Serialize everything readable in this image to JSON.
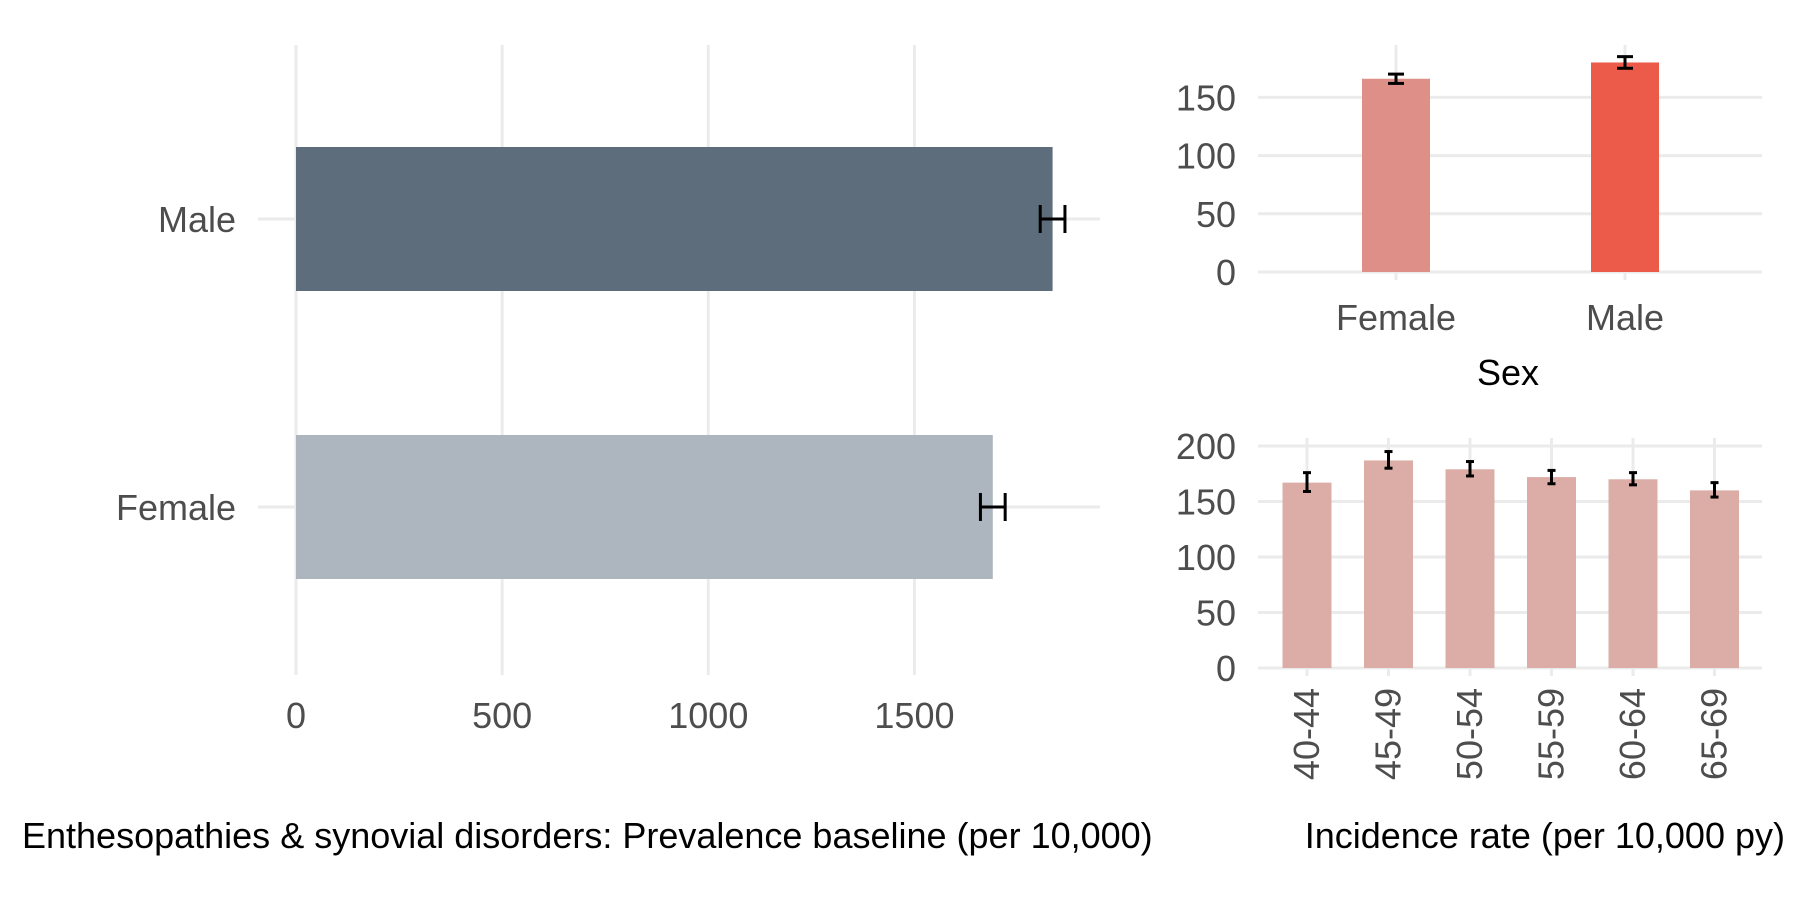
{
  "chart_data": [
    {
      "type": "bar",
      "orientation": "horizontal",
      "categories": [
        "Female",
        "Male"
      ],
      "values": [
        1690,
        1835
      ],
      "errors_low": [
        1660,
        1805
      ],
      "errors_high": [
        1720,
        1865
      ],
      "colors": [
        "#adb5be",
        "#5d6d7c"
      ],
      "xlabel": "Enthesopathies & synovial disorders: Prevalence baseline (per 10,000)",
      "xticks": [
        "0",
        "500",
        "1000",
        "1500"
      ],
      "xtick_values": [
        0,
        500,
        1000,
        1500
      ],
      "xlim": [
        0,
        1950
      ],
      "grid": true
    },
    {
      "type": "bar",
      "categories": [
        "Female",
        "Male"
      ],
      "values": [
        166,
        180
      ],
      "errors_low": [
        162,
        175
      ],
      "errors_high": [
        170,
        185
      ],
      "colors": [
        "#de8f88",
        "#ec5b4a"
      ],
      "xlabel": "Sex",
      "yticks": [
        "0",
        "50",
        "100",
        "150"
      ],
      "ytick_values": [
        0,
        50,
        100,
        150
      ],
      "ylim": [
        0,
        195
      ],
      "grid": true
    },
    {
      "type": "bar",
      "categories": [
        "40-44",
        "45-49",
        "50-54",
        "55-59",
        "60-64",
        "65-69"
      ],
      "values": [
        167,
        187,
        179,
        172,
        170,
        160
      ],
      "errors_low": [
        159,
        180,
        173,
        166,
        165,
        154
      ],
      "errors_high": [
        176,
        195,
        186,
        178,
        176,
        167
      ],
      "colors": [
        "#dcaca6"
      ],
      "xlabel": "Incidence rate (per 10,000 py)",
      "yticks": [
        "0",
        "50",
        "100",
        "150",
        "200"
      ],
      "ytick_values": [
        0,
        50,
        100,
        150,
        200
      ],
      "ylim": [
        0,
        200
      ],
      "grid": true
    }
  ]
}
